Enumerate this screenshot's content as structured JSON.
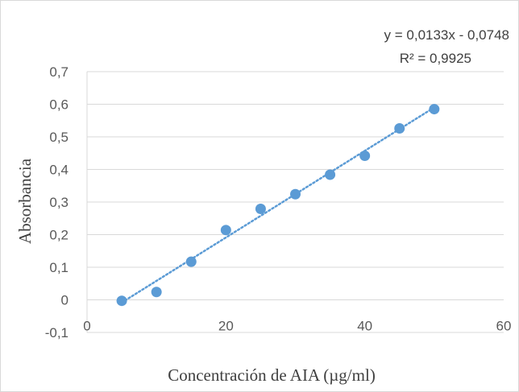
{
  "chart_data": {
    "type": "scatter",
    "title": "",
    "xlabel": "Concentración de AIA (µg/ml)",
    "ylabel": "Absorbancia",
    "xlim": [
      0,
      60
    ],
    "ylim": [
      -0.1,
      0.7
    ],
    "x_ticks": [
      0,
      20,
      40,
      60
    ],
    "x_tick_labels": [
      "0",
      "20",
      "40",
      "60"
    ],
    "y_ticks": [
      -0.1,
      0,
      0.1,
      0.2,
      0.3,
      0.4,
      0.5,
      0.6,
      0.7
    ],
    "y_tick_labels": [
      "-0,1",
      "0",
      "0,1",
      "0,2",
      "0,3",
      "0,4",
      "0,5",
      "0,6",
      "0,7"
    ],
    "grid": "horizontal",
    "legend": "none",
    "series": [
      {
        "x": [
          5,
          10,
          15,
          20,
          25,
          30,
          35,
          40,
          45,
          50
        ],
        "y": [
          -0.003,
          0.024,
          0.117,
          0.214,
          0.279,
          0.324,
          0.384,
          0.442,
          0.526,
          0.585
        ],
        "color": "#5b9bd5"
      }
    ],
    "trendline": {
      "type": "linear",
      "slope": 0.0133,
      "intercept": -0.0748,
      "x_range": [
        5,
        50
      ],
      "style": "dotted",
      "color": "#5b9bd5",
      "equation_label": "y = 0,0133x - 0,0748",
      "r2_label": "R² = 0,9925"
    },
    "gridline_color": "#d9d9d9"
  }
}
